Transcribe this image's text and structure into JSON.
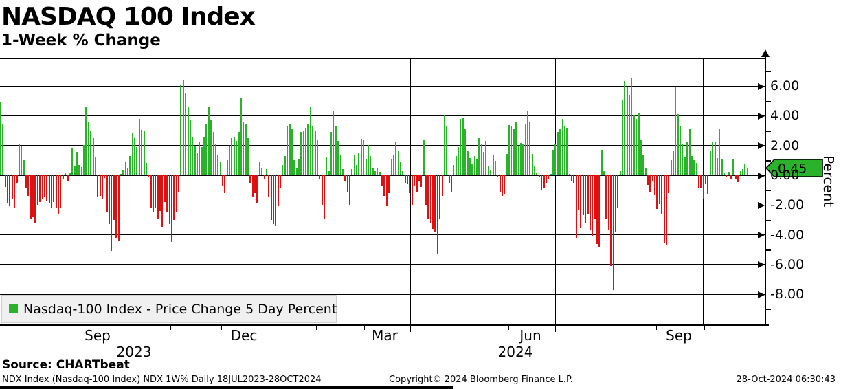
{
  "header": {
    "title": "NASDAQ 100 Index",
    "subtitle": "1-Week % Change"
  },
  "legend": {
    "label": "Nasdaq-100 Index - Price Change 5 Day Percent",
    "swatch_color": "#2ab32a"
  },
  "source_line": "Source: CHARTbeat",
  "footer": {
    "left": "NDX Index (Nasdaq-100 Index) NDX 1W%  Daily 18JUL2023-28OCT2024",
    "center": "Copyright© 2024 Bloomberg Finance L.P.",
    "right": "28-Oct-2024 06:30:43"
  },
  "chart_data": {
    "type": "bar",
    "title": "NASDAQ 100 Index",
    "subtitle": "1-Week % Change",
    "ylabel": "Percent",
    "ylim": [
      -10,
      8
    ],
    "grid": true,
    "legend_position": "bottom-left-inside",
    "y_axis": {
      "labeled_ticks": [
        6,
        4,
        2,
        0,
        -2,
        -4,
        -6,
        -8
      ],
      "tick_labels": [
        "6.00",
        "4.00",
        "2.00",
        "0.00",
        "-2.00",
        "-4.00",
        "-6.00",
        "-8.00"
      ],
      "minor_ticks": [
        7,
        5,
        3,
        1,
        -1,
        -3,
        -5,
        -7,
        -9
      ],
      "last_value_tag": "0.45",
      "last_value": 0.45,
      "tag_color": "#2ab32a"
    },
    "x_axis": {
      "month_labels": [
        "Sep",
        "Dec",
        "Mar",
        "Jun",
        "Sep"
      ],
      "year_labels": [
        "2023",
        "2024"
      ],
      "range_label": "18JUL2023-28OCT2024",
      "frequency": "Daily"
    },
    "colors": {
      "positive": "#2ab32a",
      "negative": "#dd1111"
    },
    "series": [
      {
        "name": "Nasdaq-100 Index - Price Change 5 Day Percent",
        "values": [
          4.9,
          3.4,
          -0.8,
          -1.9,
          -2.1,
          -1.6,
          -2.2,
          -0.5,
          2.1,
          2.0,
          1.0,
          -0.9,
          -1.4,
          -2.9,
          -2.8,
          -3.2,
          -2.0,
          -1.8,
          -1.6,
          -1.5,
          -1.7,
          -1.9,
          -2.2,
          -1.8,
          -2.2,
          -2.6,
          -2.2,
          -0.3,
          0.2,
          -0.4,
          0.15,
          1.8,
          0.65,
          1.55,
          0.7,
          0.55,
          2.05,
          4.55,
          3.55,
          3.0,
          2.5,
          1.2,
          -1.5,
          -1.4,
          -1.6,
          -0.2,
          -2.5,
          -3.3,
          -5.1,
          -3.0,
          -4.2,
          -4.4,
          0.1,
          0.35,
          0.9,
          0.5,
          1.3,
          2.8,
          2.5,
          1.9,
          3.8,
          3.05,
          3.0,
          0.85,
          -0.15,
          -2.2,
          -2.5,
          -2.2,
          -2.9,
          -2.4,
          -3.5,
          -1.8,
          -2.5,
          -3.3,
          -4.5,
          -3.0,
          -2.5,
          -1.1,
          6.1,
          6.4,
          5.5,
          4.6,
          3.7,
          2.6,
          2.0,
          1.5,
          2.2,
          1.9,
          2.6,
          3.4,
          4.6,
          3.7,
          2.9,
          2.1,
          1.4,
          0.9,
          -0.7,
          -1.2,
          1.0,
          2.0,
          2.5,
          2.6,
          2.3,
          2.9,
          5.2,
          3.6,
          3.4,
          2.5,
          -0.5,
          -1.5,
          -1.2,
          -1.9,
          0.9,
          0.5,
          -0.3,
          0.4,
          -1.5,
          -3.0,
          -3.3,
          -3.4,
          -2.1,
          -0.9,
          0.7,
          1.3,
          3.3,
          3.4,
          3.1,
          1.0,
          0.5,
          1.1,
          2.9,
          3.0,
          3.2,
          3.4,
          4.6,
          3.3,
          3.0,
          2.4,
          -0.3,
          -2.0,
          -2.9,
          1.2,
          0.3,
          2.9,
          4.3,
          3.3,
          2.3,
          1.4,
          0.4,
          -0.4,
          -1.1,
          -2.0,
          0.4,
          1.35,
          0.7,
          1.5,
          2.45,
          2.35,
          1.05,
          2.05,
          1.3,
          0.5,
          0.3,
          0.45,
          0.25,
          -0.7,
          -1.4,
          -2.1,
          -1.2,
          1.1,
          1.4,
          2.2,
          1.6,
          0.9,
          0.3,
          -0.5,
          -0.6,
          -1.2,
          -2.0,
          -0.7,
          -1.1,
          -0.4,
          -0.8,
          2.35,
          -2.0,
          -2.9,
          -3.2,
          -3.6,
          -3.8,
          -5.3,
          -2.9,
          -1.4,
          4.0,
          3.3,
          -0.5,
          -1.1,
          0.7,
          1.3,
          1.9,
          3.8,
          3.85,
          3.1,
          1.6,
          1.15,
          0.8,
          1.3,
          1.1,
          2.5,
          2.1,
          1.55,
          2.3,
          0.6,
          0.35,
          1.35,
          0.95,
          -0.15,
          -1.1,
          -1.4,
          -1.3,
          1.45,
          3.35,
          3.3,
          3.1,
          3.55,
          2.0,
          2.15,
          2.1,
          3.4,
          4.3,
          3.6,
          1.45,
          0.65,
          0.2,
          -0.1,
          -1.0,
          -0.9,
          -0.5,
          -0.3,
          0.1,
          1.7,
          2.1,
          2.9,
          3.1,
          3.8,
          3.3,
          3.2,
          0.1,
          -0.35,
          -0.5,
          -4.25,
          -2.35,
          -3.55,
          -2.7,
          -3.2,
          -2.65,
          -3.7,
          -4.1,
          -2.9,
          -4.6,
          -4.85,
          1.7,
          0.3,
          -2.95,
          -3.7,
          -6.1,
          -7.7,
          -3.8,
          -2.2,
          0.3,
          5.05,
          6.35,
          5.9,
          5.4,
          6.5,
          4.05,
          3.8,
          4.2,
          2.4,
          1.4,
          0.5,
          -0.65,
          -1.1,
          -0.4,
          -1.35,
          -2.25,
          -1.95,
          -2.65,
          -4.55,
          -4.7,
          -1.2,
          1.0,
          1.65,
          5.9,
          4.1,
          3.3,
          2.1,
          1.2,
          2.2,
          3.15,
          1.3,
          1.0,
          0.85,
          -0.85,
          -0.9,
          -1.55,
          -0.55,
          -1.3,
          1.6,
          2.2,
          2.2,
          1.15,
          3.15,
          1.1,
          0.15,
          -0.15,
          0.25,
          -0.3,
          1.1,
          -0.3,
          -0.45,
          0.3,
          0.4,
          0.75,
          0.45
        ]
      }
    ]
  }
}
